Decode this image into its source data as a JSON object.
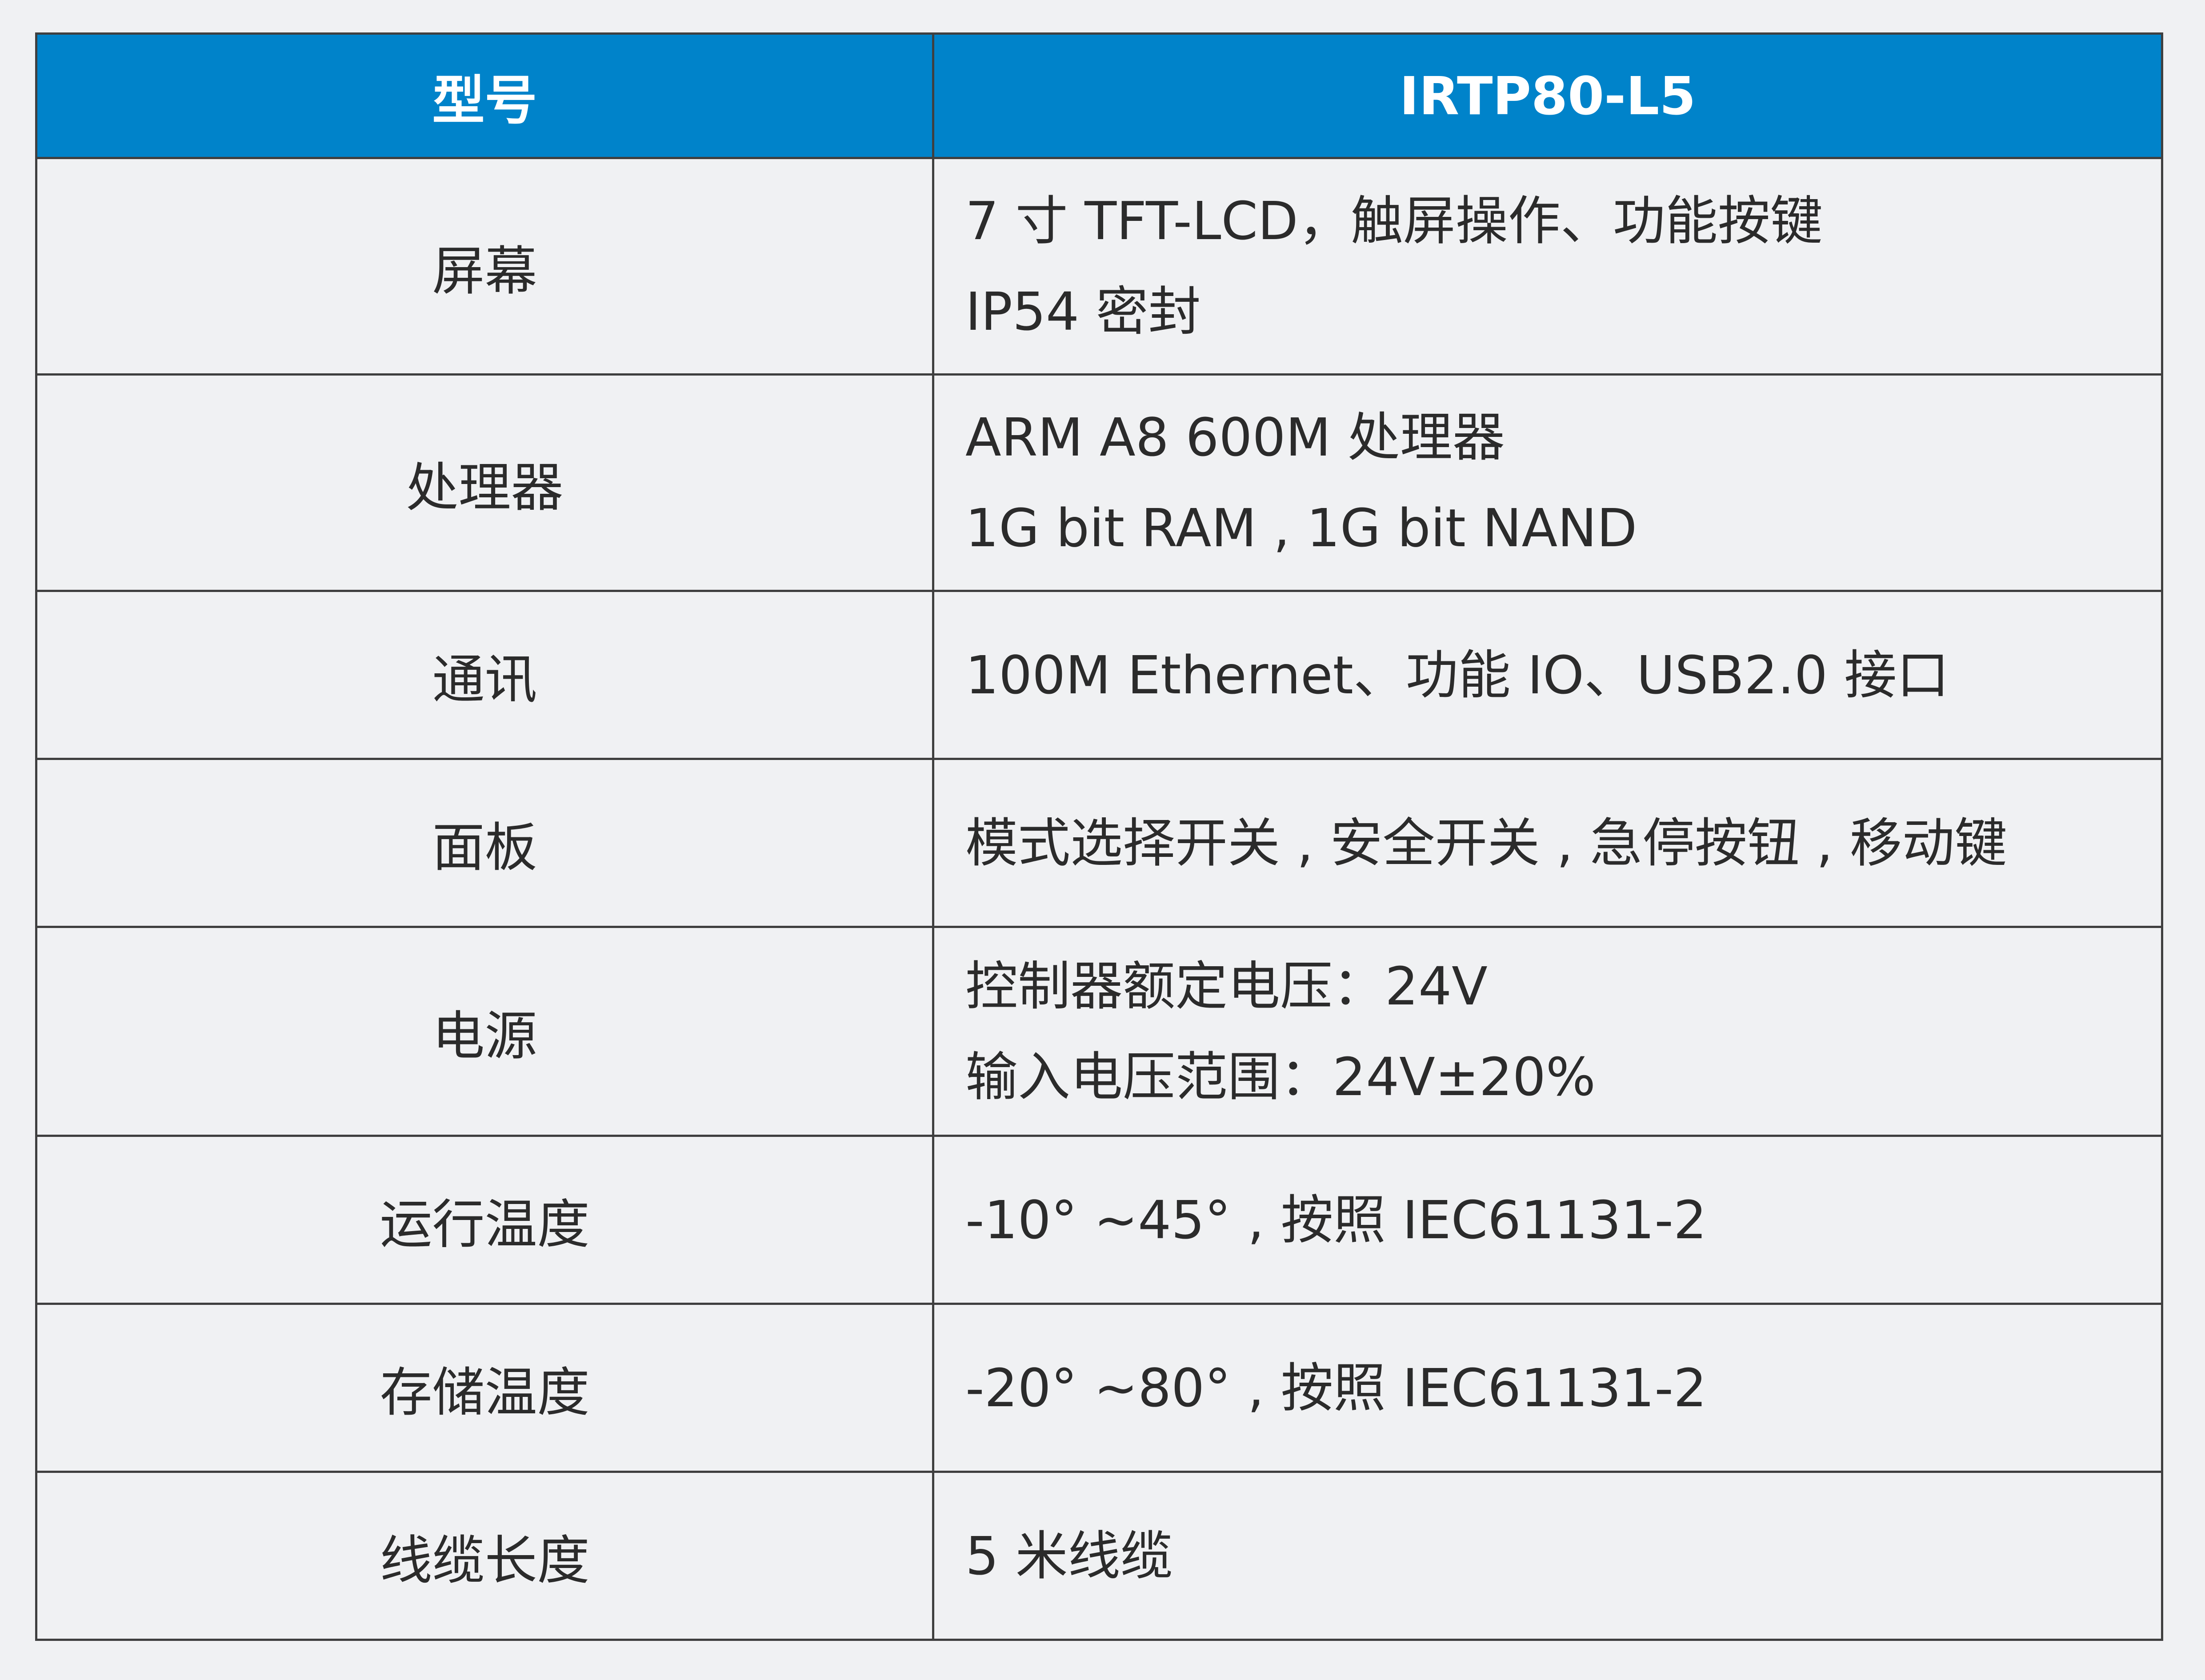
{
  "header": {
    "col_label": "型号",
    "col_value": "IRTP80-L5"
  },
  "rows": [
    {
      "label": "屏幕",
      "lines": [
        "7 寸 TFT-LCD，触屏操作、功能按键",
        "IP54 密封"
      ]
    },
    {
      "label": "处理器",
      "lines": [
        "ARM A8 600M 处理器",
        "1G bit RAM , 1G bit NAND"
      ]
    },
    {
      "label": "通讯",
      "lines": [
        "100M Ethernet、功能 IO、USB2.0 接口"
      ]
    },
    {
      "label": "面板",
      "lines": [
        "模式选择开关 , 安全开关 , 急停按钮 , 移动键"
      ]
    },
    {
      "label": "电源",
      "lines": [
        "控制器额定电压：24V",
        "输入电压范围：24V±20%"
      ]
    },
    {
      "label": "运行温度",
      "lines": [
        "-10° ~45° , 按照 IEC61131-2"
      ]
    },
    {
      "label": "存储温度",
      "lines": [
        "-20° ~80° , 按照 IEC61131-2"
      ]
    },
    {
      "label": "线缆长度",
      "lines": [
        "5 米线缆"
      ]
    }
  ],
  "colors": {
    "header_bg": "#0083ca",
    "header_text": "#ffffff",
    "border": "#3f3f3f",
    "body_text": "#2b2b2b",
    "page_bg": "#f0f1f3"
  }
}
